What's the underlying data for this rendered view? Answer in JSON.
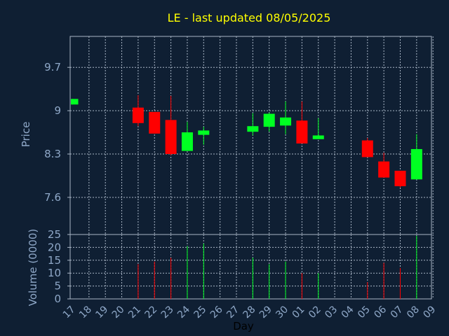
{
  "chart_data": {
    "type": "candlestick",
    "title": "LE - last updated 08/05/2025",
    "xlabel": "Day",
    "price_ylabel": "Price",
    "volume_ylabel": "Volume (0000)",
    "price_yticks": [
      "9.7",
      "9",
      "8.3",
      "7.6"
    ],
    "price_ylim": [
      7.0,
      10.2
    ],
    "volume_yticks": [
      "0",
      "5",
      "10",
      "15",
      "20",
      "25"
    ],
    "volume_ylim": [
      0,
      25
    ],
    "x_tick_labels": [
      "17",
      "18",
      "19",
      "20",
      "21",
      "22",
      "23",
      "24",
      "25",
      "26",
      "27",
      "28",
      "29",
      "30",
      "01",
      "02",
      "03",
      "04",
      "05",
      "06",
      "07",
      "08",
      "09"
    ],
    "colors": {
      "up": "#00ff22",
      "down": "#ff0000",
      "background": "#0f1f33",
      "title": "#ffff00",
      "axis_text": "#8fa8c8",
      "grid": "#a9b6c6"
    },
    "candles": [
      {
        "day": "17",
        "open": 9.1,
        "close": 9.19,
        "high": 9.19,
        "low": 9.1,
        "volume": 0
      },
      {
        "day": "21",
        "open": 9.05,
        "close": 8.8,
        "high": 9.25,
        "low": 8.75,
        "volume": 13.5
      },
      {
        "day": "22",
        "open": 8.98,
        "close": 8.63,
        "high": 8.98,
        "low": 8.63,
        "volume": 14.5
      },
      {
        "day": "23",
        "open": 8.85,
        "close": 8.3,
        "high": 9.24,
        "low": 8.28,
        "volume": 16.0
      },
      {
        "day": "24",
        "open": 8.35,
        "close": 8.65,
        "high": 8.82,
        "low": 8.35,
        "volume": 20.5
      },
      {
        "day": "25",
        "open": 8.61,
        "close": 8.68,
        "high": 8.74,
        "low": 8.45,
        "volume": 21.5
      },
      {
        "day": "28",
        "open": 8.66,
        "close": 8.75,
        "high": 8.96,
        "low": 8.6,
        "volume": 16.0
      },
      {
        "day": "29",
        "open": 8.74,
        "close": 8.95,
        "high": 8.97,
        "low": 8.66,
        "volume": 13.5
      },
      {
        "day": "30",
        "open": 8.76,
        "close": 8.89,
        "high": 9.15,
        "low": 8.62,
        "volume": 14.5
      },
      {
        "day": "01",
        "open": 8.84,
        "close": 8.47,
        "high": 9.15,
        "low": 8.47,
        "volume": 10.0
      },
      {
        "day": "02",
        "open": 8.54,
        "close": 8.6,
        "high": 8.88,
        "low": 8.54,
        "volume": 10.0
      },
      {
        "day": "05",
        "open": 8.52,
        "close": 8.25,
        "high": 8.56,
        "low": 8.25,
        "volume": 6.5
      },
      {
        "day": "06",
        "open": 8.18,
        "close": 7.92,
        "high": 8.32,
        "low": 7.92,
        "volume": 14.0
      },
      {
        "day": "07",
        "open": 8.03,
        "close": 7.78,
        "high": 8.03,
        "low": 7.76,
        "volume": 12.0
      },
      {
        "day": "08",
        "open": 7.89,
        "close": 8.38,
        "high": 8.62,
        "low": 7.89,
        "volume": 24.5
      }
    ]
  }
}
